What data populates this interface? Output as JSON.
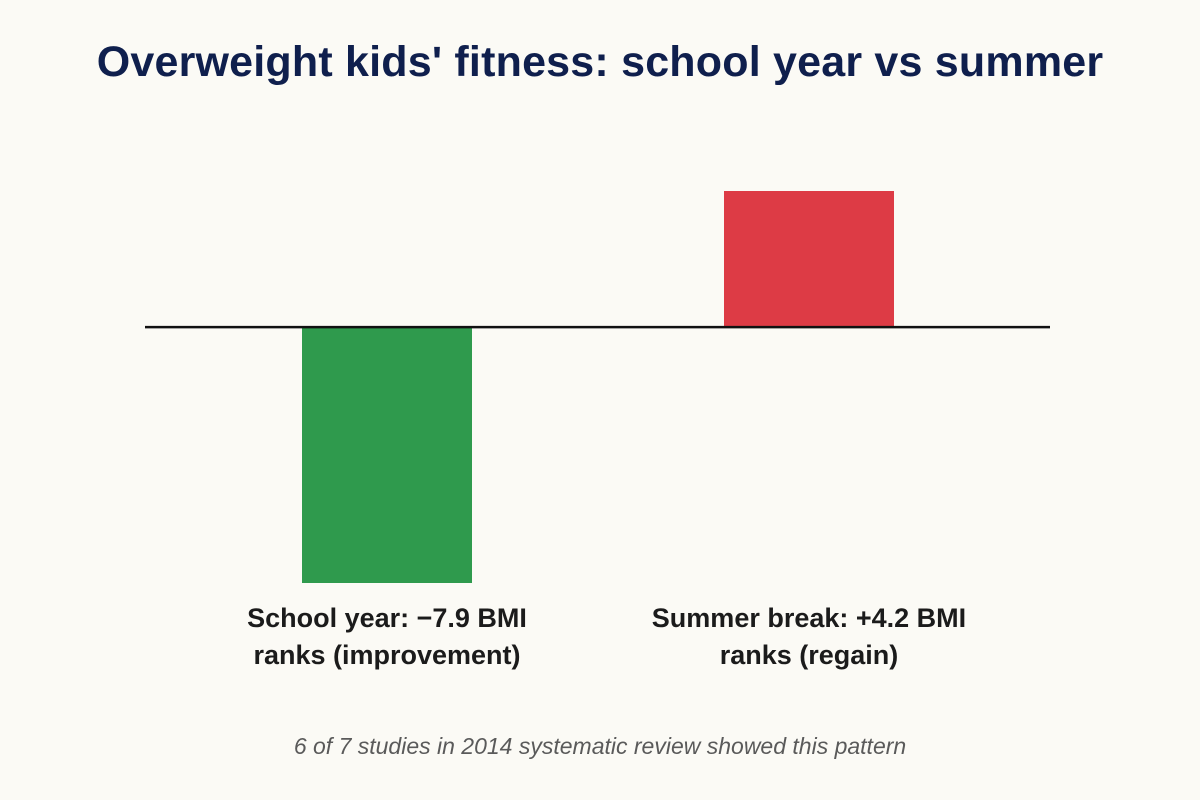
{
  "chart_data": {
    "type": "bar",
    "title": "Overweight kids' fitness: school year vs summer",
    "categories": [
      "School year",
      "Summer break"
    ],
    "series": [
      {
        "values": [
          -7.9,
          4.2
        ]
      }
    ],
    "unit": "BMI ranks",
    "data_labels": [
      [
        "School year: −7.9 BMI",
        "ranks (improvement)"
      ],
      [
        "Summer break: +4.2 BMI",
        "ranks (regain)"
      ]
    ],
    "bar_colors": [
      "#2f9a4d",
      "#dd3b45"
    ],
    "ylim": [
      -7.9,
      4.2
    ],
    "grid": false,
    "annotation": "6 of 7 studies in 2014  systematic review showed this pattern"
  }
}
